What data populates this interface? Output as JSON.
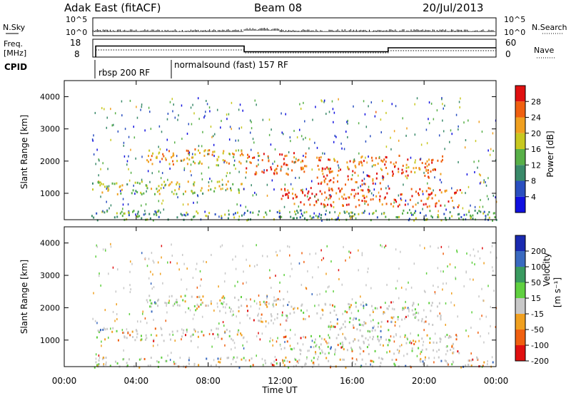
{
  "header": {
    "station": "Adak East (fitACF)",
    "beam": "Beam 08",
    "date": "20/Jul/2013"
  },
  "panels": {
    "nsky_label": "N.Sky",
    "nsearch_label": "N.Search",
    "freq_label_line1": "Freq.",
    "freq_label_line2": "[MHz]",
    "nave_label": "Nave",
    "cpid_label": "CPID",
    "nsky_ticks": [
      "10^5",
      "10^0"
    ],
    "nsearch_ticks": [
      "10^5",
      "10^0"
    ],
    "freq_ticks": [
      "18",
      "8"
    ],
    "nave_ticks": [
      "60",
      "0"
    ],
    "cpid_segments": [
      {
        "label": "rbsp 200 RF",
        "start_hour": 1.75,
        "end_hour": 6.0
      },
      {
        "label": "normalsound (fast) 157 RF",
        "start_hour": 6.0,
        "end_hour": 24.0
      }
    ]
  },
  "chart_data": [
    {
      "type": "step-line",
      "name": "frequency",
      "x_hours": [
        1.75,
        10.0,
        10.0,
        18.0,
        18.0,
        24.0
      ],
      "freq_mhz": [
        14.2,
        14.2,
        11.0,
        11.0,
        13.2,
        13.2
      ],
      "xlim": [
        0,
        24
      ]
    },
    {
      "type": "heatmap",
      "title": "",
      "ylabel": "Slant Range [km]",
      "y_ticks": [
        "1000",
        "2000",
        "3000",
        "4000"
      ],
      "ylim": [
        180,
        4500
      ],
      "xlim": [
        0,
        24
      ],
      "colorbar_label": "Power [dB]",
      "colorbar_ticks": [
        "4",
        "8",
        "12",
        "16",
        "20",
        "24",
        "28"
      ],
      "colorbar_colors": [
        "#1010e0",
        "#2a4fc0",
        "#3a8a6a",
        "#58b048",
        "#c8c820",
        "#f0a020",
        "#f06010",
        "#e01010"
      ],
      "regions": [
        {
          "t0": 1.5,
          "t1": 10.0,
          "r0": 1000,
          "r1": 1400,
          "level": 0.55
        },
        {
          "t0": 4.5,
          "t1": 10.0,
          "r0": 1900,
          "r1": 2400,
          "level": 0.7
        },
        {
          "t0": 10.0,
          "t1": 13.5,
          "r0": 1600,
          "r1": 2300,
          "level": 0.85
        },
        {
          "t0": 14.0,
          "t1": 18.0,
          "r0": 1300,
          "r1": 2200,
          "level": 0.85
        },
        {
          "t0": 18.0,
          "t1": 21.0,
          "r0": 1500,
          "r1": 2200,
          "level": 0.8
        },
        {
          "t0": 12.0,
          "t1": 22.0,
          "r0": 600,
          "r1": 1200,
          "level": 0.9
        },
        {
          "t0": 1.5,
          "t1": 24.0,
          "r0": 180,
          "r1": 500,
          "level": 0.35
        }
      ]
    },
    {
      "type": "heatmap",
      "title": "",
      "ylabel": "Slant Range [km]",
      "y_ticks": [
        "1000",
        "2000",
        "3000",
        "4000"
      ],
      "ylim": [
        180,
        4500
      ],
      "xlim": [
        0,
        24
      ],
      "xlabel": "Time UT",
      "x_ticks": [
        "00:00",
        "04:00",
        "08:00",
        "12:00",
        "16:00",
        "20:00",
        "00:00"
      ],
      "colorbar_label": "Velocity",
      "colorbar_unit": "[m s⁻¹]",
      "colorbar_ticks": [
        "200",
        "100",
        "50",
        "15",
        "-15",
        "-50",
        "-100",
        "-200"
      ],
      "colorbar_colors": [
        "#1a2ab0",
        "#3a6ac0",
        "#3a9a60",
        "#60d040",
        "#c8c8c8",
        "#f0a020",
        "#f06010",
        "#e01010"
      ]
    }
  ]
}
